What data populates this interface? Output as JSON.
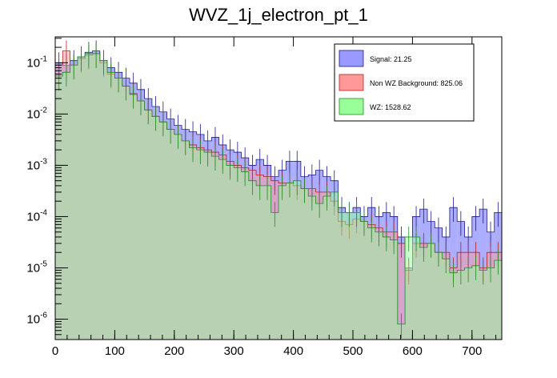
{
  "chart_data": {
    "type": "bar",
    "title": "WVZ_1j_electron_pt_1",
    "xlabel": "",
    "ylabel": "",
    "x_range": [
      0,
      750
    ],
    "y_range": [
      4e-07,
      0.32
    ],
    "y_scale": "log",
    "bin_width": 12.5,
    "x_ticks": [
      "0",
      "100",
      "200",
      "300",
      "400",
      "500",
      "600",
      "700"
    ],
    "y_ticks": [
      {
        "value": 1e-06,
        "base": "10",
        "exp": "-6"
      },
      {
        "value": 1e-05,
        "base": "10",
        "exp": "-5"
      },
      {
        "value": 0.0001,
        "base": "10",
        "exp": "-4"
      },
      {
        "value": 0.001,
        "base": "10",
        "exp": "-3"
      },
      {
        "value": 0.01,
        "base": "10",
        "exp": "-2"
      },
      {
        "value": 0.1,
        "base": "10",
        "exp": "-1"
      }
    ],
    "legend_position": "top-right",
    "series": [
      {
        "name": "Signal: 21.25",
        "color": "#9999ff",
        "edge": "#1a1a8c",
        "values": [
          0.1,
          0.09,
          0.11,
          0.13,
          0.16,
          0.17,
          0.11,
          0.08,
          0.065,
          0.05,
          0.04,
          0.03,
          0.02,
          0.014,
          0.011,
          0.008,
          0.006,
          0.005,
          0.0045,
          0.004,
          0.003,
          0.0035,
          0.0025,
          0.002,
          0.0018,
          0.0014,
          0.001,
          0.0013,
          0.001,
          0.0006,
          0.0008,
          0.0012,
          0.0012,
          0.0006,
          0.00065,
          0.0008,
          0.0006,
          0.0005,
          0.00015,
          0.00012,
          0.00015,
          0.0001,
          0.00015,
          0.0001,
          0.00012,
          0.0001,
          4e-05,
          1e-05,
          0.0001,
          0.00014,
          8e-05,
          6e-05,
          4e-05,
          0.00015,
          8e-05,
          4e-05,
          0.0001,
          0.00014,
          5e-05,
          0.00012
        ]
      },
      {
        "name": "Non WZ Background: 825.06",
        "color": "#ff9999",
        "edge": "#b22222",
        "values": [
          0.09,
          0.17,
          0.09,
          0.12,
          0.14,
          0.15,
          0.1,
          0.06,
          0.05,
          0.035,
          0.025,
          0.018,
          0.012,
          0.009,
          0.007,
          0.005,
          0.004,
          0.003,
          0.0025,
          0.0022,
          0.002,
          0.0018,
          0.0016,
          0.0012,
          0.001,
          0.0009,
          0.0008,
          0.00065,
          0.0006,
          0.0005,
          0.00045,
          0.00045,
          0.0004,
          0.00035,
          0.00035,
          0.0003,
          0.0003,
          0.0002,
          8e-05,
          7e-05,
          9e-05,
          8e-05,
          7e-05,
          6e-05,
          5e-05,
          5e-05,
          3e-05,
          9e-06,
          3e-05,
          3e-05,
          3e-05,
          2e-05,
          2e-05,
          1e-05,
          2e-05,
          2e-05,
          2e-05,
          1e-05,
          2e-05,
          2e-05
        ]
      },
      {
        "name": "WZ: 1528.62",
        "color": "#99ff99",
        "edge": "#228b22",
        "values": [
          0.055,
          0.065,
          0.09,
          0.13,
          0.15,
          0.15,
          0.11,
          0.065,
          0.05,
          0.035,
          0.024,
          0.018,
          0.012,
          0.009,
          0.007,
          0.005,
          0.004,
          0.003,
          0.0022,
          0.002,
          0.0018,
          0.0015,
          0.0013,
          0.001,
          0.0009,
          0.00075,
          0.0005,
          0.0004,
          0.0004,
          0.00012,
          0.0004,
          0.00045,
          0.0005,
          0.00035,
          0.00025,
          0.00018,
          0.00025,
          0.0003,
          0.00012,
          0.00012,
          0.00012,
          8e-05,
          6e-05,
          5e-05,
          4e-05,
          3.5e-05,
          8e-07,
          4e-05,
          4e-05,
          2.5e-05,
          3e-05,
          2e-05,
          1.5e-05,
          8e-06,
          9e-06,
          1e-05,
          1.1e-05,
          9e-06,
          1e-05,
          1.4e-05
        ]
      }
    ]
  }
}
